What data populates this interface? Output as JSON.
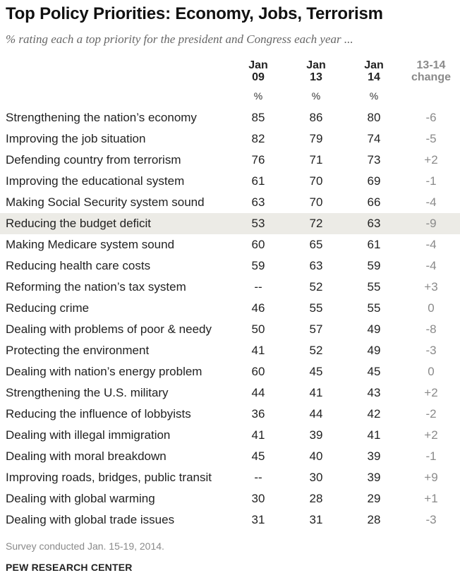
{
  "title": "Top Policy Priorities: Economy, Jobs, Terrorism",
  "subtitle": "% rating each a top priority for the president and Congress each year ...",
  "columns": [
    {
      "line1": "Jan",
      "line2": "09",
      "unit": "%"
    },
    {
      "line1": "Jan",
      "line2": "13",
      "unit": "%"
    },
    {
      "line1": "Jan",
      "line2": "14",
      "unit": "%"
    },
    {
      "line1": "13-14",
      "line2": "change",
      "unit": ""
    }
  ],
  "chart_data": {
    "type": "table",
    "title": "Top Policy Priorities: Economy, Jobs, Terrorism",
    "subtitle": "% rating each a top priority for the president and Congress each year ...",
    "headers": [
      "",
      "Jan 09",
      "Jan 13",
      "Jan 14",
      "13-14 change"
    ],
    "highlighted_row": "Reducing the budget deficit",
    "rows": [
      {
        "label": "Strengthening the nation’s economy",
        "jan09": "85",
        "jan13": "86",
        "jan14": "80",
        "change": "-6"
      },
      {
        "label": "Improving the job situation",
        "jan09": "82",
        "jan13": "79",
        "jan14": "74",
        "change": "-5"
      },
      {
        "label": "Defending country from terrorism",
        "jan09": "76",
        "jan13": "71",
        "jan14": "73",
        "change": "+2"
      },
      {
        "label": "Improving the educational system",
        "jan09": "61",
        "jan13": "70",
        "jan14": "69",
        "change": "-1"
      },
      {
        "label": "Making Social Security system sound",
        "jan09": "63",
        "jan13": "70",
        "jan14": "66",
        "change": "-4"
      },
      {
        "label": "Reducing the budget deficit",
        "jan09": "53",
        "jan13": "72",
        "jan14": "63",
        "change": "-9"
      },
      {
        "label": "Making Medicare system sound",
        "jan09": "60",
        "jan13": "65",
        "jan14": "61",
        "change": "-4"
      },
      {
        "label": "Reducing health care costs",
        "jan09": "59",
        "jan13": "63",
        "jan14": "59",
        "change": "-4"
      },
      {
        "label": "Reforming the nation’s tax system",
        "jan09": "--",
        "jan13": "52",
        "jan14": "55",
        "change": "+3"
      },
      {
        "label": "Reducing crime",
        "jan09": "46",
        "jan13": "55",
        "jan14": "55",
        "change": "0"
      },
      {
        "label": "Dealing with problems of poor & needy",
        "jan09": "50",
        "jan13": "57",
        "jan14": "49",
        "change": "-8"
      },
      {
        "label": "Protecting the environment",
        "jan09": "41",
        "jan13": "52",
        "jan14": "49",
        "change": "-3"
      },
      {
        "label": "Dealing with nation’s energy problem",
        "jan09": "60",
        "jan13": "45",
        "jan14": "45",
        "change": "0"
      },
      {
        "label": "Strengthening the U.S. military",
        "jan09": "44",
        "jan13": "41",
        "jan14": "43",
        "change": "+2"
      },
      {
        "label": "Reducing the influence of lobbyists",
        "jan09": "36",
        "jan13": "44",
        "jan14": "42",
        "change": "-2"
      },
      {
        "label": "Dealing with illegal immigration",
        "jan09": "41",
        "jan13": "39",
        "jan14": "41",
        "change": "+2"
      },
      {
        "label": "Dealing with moral breakdown",
        "jan09": "45",
        "jan13": "40",
        "jan14": "39",
        "change": "-1"
      },
      {
        "label": "Improving roads, bridges, public transit",
        "jan09": "--",
        "jan13": "30",
        "jan14": "39",
        "change": "+9"
      },
      {
        "label": "Dealing with global warming",
        "jan09": "30",
        "jan13": "28",
        "jan14": "29",
        "change": "+1"
      },
      {
        "label": "Dealing with global trade issues",
        "jan09": "31",
        "jan13": "31",
        "jan14": "28",
        "change": "-3"
      }
    ]
  },
  "note": "Survey conducted Jan. 15-19, 2014.",
  "source": "PEW RESEARCH CENTER",
  "colors": {
    "highlight": "#ecebe6",
    "change_text": "#8a8a8a",
    "note_text": "#8a8a8a"
  }
}
